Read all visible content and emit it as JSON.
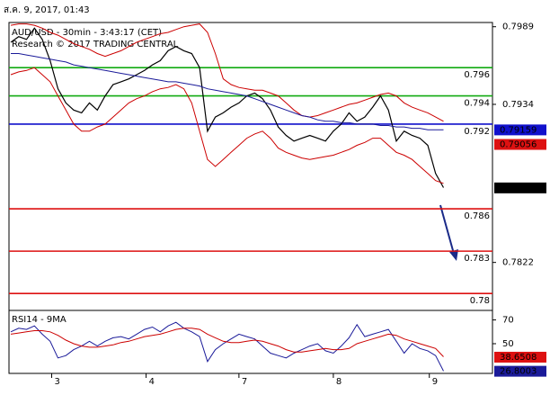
{
  "header": {
    "timestamp": "ส.ค. 9, 2017, 01:43"
  },
  "chart_data": {
    "type": "line",
    "title": "AUD/USD - 30min - 3:43:17 (CET)",
    "subtitle": "Research © 2017 TRADING CENTRAL",
    "xlim": [
      0,
      61
    ],
    "xticks": [
      {
        "value": 5.2,
        "label": "3"
      },
      {
        "value": 17.2,
        "label": "4"
      },
      {
        "value": 29,
        "label": "7"
      },
      {
        "value": 41,
        "label": "8"
      },
      {
        "value": 53.2,
        "label": "9"
      }
    ],
    "ylim": [
      0.7788,
      0.7992
    ],
    "yticks": [
      0.7822,
      0.7934,
      0.7989
    ],
    "series": [
      {
        "name": "Price",
        "color": "#000000",
        "values": [
          0.7978,
          0.7982,
          0.798,
          0.7988,
          0.798,
          0.7965,
          0.7945,
          0.7935,
          0.793,
          0.7928,
          0.7935,
          0.793,
          0.794,
          0.7948,
          0.795,
          0.7952,
          0.7955,
          0.7958,
          0.7962,
          0.7965,
          0.7972,
          0.7975,
          0.7972,
          0.797,
          0.796,
          0.7915,
          0.7925,
          0.7928,
          0.7932,
          0.7935,
          0.794,
          0.7942,
          0.7938,
          0.793,
          0.7918,
          0.7912,
          0.7908,
          0.791,
          0.7912,
          0.791,
          0.7908,
          0.7915,
          0.792,
          0.7928,
          0.7922,
          0.7925,
          0.7932,
          0.794,
          0.793,
          0.7908,
          0.7915,
          0.7912,
          0.791,
          0.7905,
          0.7885,
          0.7875
        ]
      },
      {
        "name": "Upper band",
        "color": "#cc0000",
        "values": [
          0.799,
          0.7991,
          0.7991,
          0.799,
          0.7988,
          0.7985,
          0.7983,
          0.798,
          0.7977,
          0.7975,
          0.7973,
          0.797,
          0.7968,
          0.797,
          0.7972,
          0.7975,
          0.7978,
          0.798,
          0.7982,
          0.7984,
          0.7985,
          0.7987,
          0.7989,
          0.799,
          0.7991,
          0.7985,
          0.797,
          0.7952,
          0.7948,
          0.7946,
          0.7945,
          0.7944,
          0.7944,
          0.7942,
          0.794,
          0.7935,
          0.793,
          0.7926,
          0.7925,
          0.7926,
          0.7928,
          0.793,
          0.7932,
          0.7934,
          0.7935,
          0.7937,
          0.7939,
          0.7941,
          0.7942,
          0.794,
          0.7935,
          0.7932,
          0.793,
          0.7928,
          0.7925,
          0.7922
        ]
      },
      {
        "name": "Lower band",
        "color": "#cc0000",
        "values": [
          0.7955,
          0.7957,
          0.7958,
          0.796,
          0.7955,
          0.795,
          0.794,
          0.793,
          0.792,
          0.7915,
          0.7915,
          0.7918,
          0.792,
          0.7925,
          0.793,
          0.7935,
          0.7938,
          0.794,
          0.7943,
          0.7945,
          0.7946,
          0.7948,
          0.7945,
          0.7935,
          0.7915,
          0.7895,
          0.789,
          0.7895,
          0.79,
          0.7905,
          0.791,
          0.7913,
          0.7915,
          0.791,
          0.7903,
          0.79,
          0.7898,
          0.7896,
          0.7895,
          0.7896,
          0.7897,
          0.7898,
          0.79,
          0.7902,
          0.7905,
          0.7907,
          0.791,
          0.791,
          0.7905,
          0.79,
          0.7898,
          0.7895,
          0.789,
          0.7885,
          0.788,
          0.7878
        ]
      },
      {
        "name": "Moving average",
        "color": "#1a1a99",
        "values": [
          0.797,
          0.797,
          0.7969,
          0.7968,
          0.7967,
          0.7966,
          0.7965,
          0.7964,
          0.7962,
          0.7961,
          0.796,
          0.7959,
          0.7958,
          0.7957,
          0.7956,
          0.7955,
          0.7954,
          0.7953,
          0.7952,
          0.7951,
          0.795,
          0.795,
          0.7949,
          0.7948,
          0.7947,
          0.7945,
          0.7944,
          0.7943,
          0.7942,
          0.7941,
          0.794,
          0.7938,
          0.7936,
          0.7934,
          0.7932,
          0.793,
          0.7928,
          0.7926,
          0.7925,
          0.7923,
          0.7922,
          0.7922,
          0.7921,
          0.7921,
          0.792,
          0.792,
          0.792,
          0.7919,
          0.7919,
          0.7918,
          0.7918,
          0.7917,
          0.7917,
          0.7916,
          0.7916,
          0.7916
        ]
      }
    ],
    "levels": [
      {
        "value": 0.796,
        "color": "#11aa11"
      },
      {
        "value": 0.794,
        "color": "#11aa11"
      },
      {
        "value": 0.792,
        "color": "#1010cc"
      },
      {
        "value": 0.786,
        "color": "#dd1111"
      },
      {
        "value": 0.783,
        "color": "#dd1111"
      },
      {
        "value": 0.78,
        "color": "#dd1111"
      }
    ],
    "markers": [
      {
        "value": 0.79159,
        "color": "#1010cc"
      },
      {
        "value": 0.79056,
        "color": "#dd1111"
      },
      {
        "value": 0.78748,
        "color": "#000000"
      }
    ],
    "rsi": {
      "label": "RSI14 - 9MA",
      "ylim": [
        25,
        78
      ],
      "yticks": [
        50,
        70
      ],
      "series": [
        {
          "color": "#1a1a99",
          "values": [
            60,
            63,
            62,
            65,
            58,
            52,
            38,
            40,
            45,
            48,
            52,
            48,
            52,
            55,
            56,
            54,
            58,
            62,
            64,
            60,
            65,
            68,
            63,
            60,
            56,
            35,
            45,
            50,
            54,
            58,
            56,
            54,
            48,
            42,
            40,
            38,
            42,
            45,
            48,
            50,
            44,
            42,
            48,
            55,
            66,
            56,
            58,
            60,
            62,
            52,
            42,
            50,
            46,
            44,
            40,
            27
          ]
        },
        {
          "color": "#cc0000",
          "values": [
            58,
            59,
            60,
            61,
            61,
            60,
            57,
            53,
            50,
            48,
            47,
            47,
            48,
            49,
            51,
            52,
            54,
            56,
            57,
            58,
            60,
            62,
            63,
            63,
            62,
            58,
            55,
            52,
            51,
            51,
            52,
            53,
            52,
            50,
            48,
            45,
            43,
            43,
            44,
            45,
            46,
            45,
            45,
            46,
            50,
            52,
            54,
            56,
            58,
            57,
            54,
            52,
            50,
            48,
            46,
            39
          ]
        }
      ],
      "markers": [
        {
          "value": 38.6508,
          "color": "#dd1111"
        },
        {
          "value": 26.8003,
          "color": "#1a1a99"
        }
      ]
    }
  }
}
